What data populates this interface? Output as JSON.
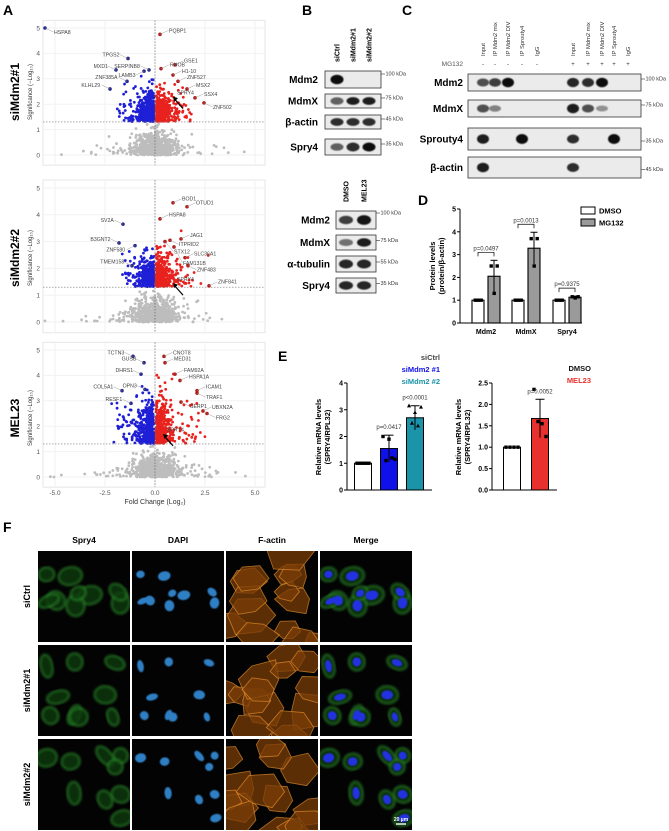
{
  "panel_labels": {
    "a": "A",
    "b": "B",
    "c": "C",
    "d": "D",
    "e": "E",
    "f": "F"
  },
  "panel_a": {
    "row_labels": [
      "siMdm2#1",
      "siMdm2#2",
      "MEL23"
    ],
    "ylabel": "Significance (−Log₁₀)",
    "xlabel": "Fold Change (Log₂)"
  },
  "panel_b": {
    "top": {
      "lanes": [
        "siCtrl",
        "siMdm2#1",
        "siMdm2#2"
      ],
      "rows": [
        {
          "label": "Mdm2",
          "kda": "100 kDa",
          "bands": [
            1,
            0,
            0
          ]
        },
        {
          "label": "MdmX",
          "kda": "75 kDa",
          "bands": [
            0.5,
            0.9,
            0.9
          ]
        },
        {
          "label": "β-actin",
          "kda": "45 kDa",
          "bands": [
            0.8,
            0.8,
            0.8
          ]
        },
        {
          "label": "Spry4",
          "kda": "35 kDa",
          "bands": [
            0.5,
            0.8,
            1
          ]
        }
      ]
    },
    "bottom": {
      "lanes": [
        "DMSO",
        "MEL23"
      ],
      "rows": [
        {
          "label": "Mdm2",
          "kda": "100 kDa",
          "bands": [
            0.7,
            0.95
          ]
        },
        {
          "label": "MdmX",
          "kda": "75 kDa",
          "bands": [
            0.4,
            0.9
          ]
        },
        {
          "label": "α-tubulin",
          "kda": "55 kDa",
          "bands": [
            0.85,
            0.85
          ]
        },
        {
          "label": "Spry4",
          "kda": "35 kDa",
          "bands": [
            0.85,
            0.85
          ]
        }
      ]
    }
  },
  "panel_c": {
    "treatment_label": "MG132",
    "lanes": [
      "Input",
      "IP Mdm2 mix",
      "IP Mdm2 DIV",
      "IP Sprouty4",
      "IgG",
      "Input",
      "IP Mdm2 mix",
      "IP Mdm2 DIV",
      "IP Sprouty4",
      "IgG"
    ],
    "treatment": [
      "-",
      "-",
      "-",
      "-",
      "-",
      "+",
      "+",
      "+",
      "+",
      "+"
    ],
    "rows": [
      {
        "label": "Mdm2",
        "kda": "100 kDa",
        "bands": [
          0.6,
          0.7,
          1,
          0,
          0,
          0.85,
          0.8,
          1,
          0,
          0
        ]
      },
      {
        "label": "MdmX",
        "kda": "75 kDa",
        "bands": [
          0.6,
          0.3,
          0,
          0,
          0,
          0.9,
          0.6,
          0.2,
          0,
          0
        ]
      },
      {
        "label": "Sprouty4",
        "kda": "35 kDa",
        "bands": [
          0.9,
          0,
          0,
          1,
          0,
          0.8,
          0,
          0,
          1,
          0
        ]
      },
      {
        "label": "β-actin",
        "kda": "45 kDa",
        "bands": [
          0.9,
          0,
          0,
          0,
          0,
          0.8,
          0,
          0,
          0,
          0
        ]
      }
    ]
  },
  "panel_f": {
    "columns": [
      "Spry4",
      "DAPI",
      "F-actin",
      "Merge"
    ],
    "rows": [
      "siCtrl",
      "siMdm2#1",
      "siMdm2#2"
    ],
    "scale_bar": "20 µm"
  },
  "chart_data": [
    {
      "type": "scatter",
      "panel": "A",
      "row": "siMdm2#1",
      "xlabel": "",
      "ylabel": "Significance (−Log₁₀)",
      "xlim": [
        -5.6,
        5.5
      ],
      "ylim": [
        0,
        5.2
      ],
      "y_ticks": [
        0,
        1,
        2,
        3,
        4,
        5
      ],
      "x_ticks": [],
      "threshold_y": 1.3,
      "threshold_x": 0,
      "colors": {
        "down": "#1f1fd6",
        "up": "#e8221e",
        "ns": "#bdbdbd"
      },
      "labeled_points": [
        {
          "gene": "HSPA8",
          "x": -5.5,
          "y": 5.0
        },
        {
          "gene": "TPGS2",
          "x": -1.35,
          "y": 3.8
        },
        {
          "gene": "MXD1",
          "x": -1.95,
          "y": 3.35
        },
        {
          "gene": "LAMB3",
          "x": -0.55,
          "y": 3.3
        },
        {
          "gene": "SERPINB8",
          "x": -0.3,
          "y": 3.35
        },
        {
          "gene": "ZNF385A",
          "x": -1.4,
          "y": 2.9
        },
        {
          "gene": "KLHL29",
          "x": -2.25,
          "y": 2.6
        },
        {
          "gene": "PQBP1",
          "x": 0.25,
          "y": 4.75
        },
        {
          "gene": "RHOB",
          "x": 0.3,
          "y": 3.4
        },
        {
          "gene": "GSE1",
          "x": 1.0,
          "y": 3.55
        },
        {
          "gene": "H1-10",
          "x": 0.9,
          "y": 3.15
        },
        {
          "gene": "ZNF527",
          "x": 1.15,
          "y": 2.9
        },
        {
          "gene": "MSX2",
          "x": 1.6,
          "y": 2.6
        },
        {
          "gene": "SSX4",
          "x": 2.0,
          "y": 2.25
        },
        {
          "gene": "ZNF502",
          "x": 2.45,
          "y": 2.05
        },
        {
          "gene": "SPRY4",
          "x": 0.9,
          "y": 2.3,
          "arrow": true
        }
      ]
    },
    {
      "type": "scatter",
      "panel": "A",
      "row": "siMdm2#2",
      "xlabel": "",
      "ylabel": "Significance (−Log₁₀)",
      "xlim": [
        -5.6,
        5.5
      ],
      "ylim": [
        0,
        5.2
      ],
      "y_ticks": [
        0,
        1,
        2,
        3,
        4,
        5
      ],
      "x_ticks": [],
      "threshold_y": 1.3,
      "threshold_x": 0,
      "colors": {
        "down": "#1f1fd6",
        "up": "#e8221e",
        "ns": "#bdbdbd"
      },
      "labeled_points": [
        {
          "gene": "SV2A",
          "x": -1.6,
          "y": 3.65
        },
        {
          "gene": "B3GNT2",
          "x": -1.8,
          "y": 2.95
        },
        {
          "gene": "ZNF580",
          "x": -1.0,
          "y": 2.85
        },
        {
          "gene": "TMEM158",
          "x": -1.15,
          "y": 2.1
        },
        {
          "gene": "BOD1",
          "x": 0.9,
          "y": 4.45
        },
        {
          "gene": "OTUD1",
          "x": 1.6,
          "y": 4.3
        },
        {
          "gene": "HSPA8",
          "x": 0.25,
          "y": 3.85
        },
        {
          "gene": "STX12",
          "x": 0.5,
          "y": 3.0
        },
        {
          "gene": "ITPRID2",
          "x": 0.75,
          "y": 3.05
        },
        {
          "gene": "JAG1",
          "x": 1.3,
          "y": 3.1
        },
        {
          "gene": "FAM131B",
          "x": 0.95,
          "y": 2.8
        },
        {
          "gene": "SLC36A1",
          "x": 1.5,
          "y": 2.4
        },
        {
          "gene": "ZNF483",
          "x": 1.65,
          "y": 2.1
        },
        {
          "gene": "ZNF841",
          "x": 2.7,
          "y": 1.35
        },
        {
          "gene": "SPRY4",
          "x": 0.9,
          "y": 1.45,
          "arrow": true
        }
      ]
    },
    {
      "type": "scatter",
      "panel": "A",
      "row": "MEL23",
      "xlabel": "Fold Change (Log₂)",
      "ylabel": "Significance (−Log₁₀)",
      "xlim": [
        -5.6,
        5.5
      ],
      "ylim": [
        0,
        5.2
      ],
      "y_ticks": [
        0,
        1,
        2,
        3,
        4,
        5
      ],
      "x_ticks": [
        -5.0,
        -2.5,
        0.0,
        2.5,
        5.0
      ],
      "threshold_y": 1.3,
      "threshold_x": 0,
      "colors": {
        "down": "#1f1fd6",
        "up": "#e8221e",
        "ns": "#bdbdbd"
      },
      "labeled_points": [
        {
          "gene": "TCTN3",
          "x": -1.1,
          "y": 4.75
        },
        {
          "gene": "GUSB",
          "x": -0.55,
          "y": 4.5
        },
        {
          "gene": "DHRS1",
          "x": -0.7,
          "y": 4.05
        },
        {
          "gene": "COL5A1",
          "x": -1.65,
          "y": 3.4
        },
        {
          "gene": "OPN3",
          "x": -0.5,
          "y": 3.45
        },
        {
          "gene": "RESF1",
          "x": -1.2,
          "y": 2.9
        },
        {
          "gene": "CNOT8",
          "x": 0.45,
          "y": 4.75
        },
        {
          "gene": "MED31",
          "x": 0.5,
          "y": 4.5
        },
        {
          "gene": "FAM92A",
          "x": 1.0,
          "y": 4.05
        },
        {
          "gene": "HSPA1A",
          "x": 1.25,
          "y": 3.8
        },
        {
          "gene": "ICAM1",
          "x": 2.1,
          "y": 3.4
        },
        {
          "gene": "TRAF1",
          "x": 2.1,
          "y": 3.3
        },
        {
          "gene": "SERP1",
          "x": 1.3,
          "y": 2.95
        },
        {
          "gene": "UBXN2A",
          "x": 2.4,
          "y": 2.6
        },
        {
          "gene": "FRG2",
          "x": 2.6,
          "y": 2.5
        },
        {
          "gene": "SPRY4",
          "x": 0.4,
          "y": 1.7,
          "arrow": true
        }
      ]
    },
    {
      "type": "bar",
      "panel": "D",
      "categories": [
        "Mdm2",
        "MdmX",
        "Spry4"
      ],
      "ylabel": [
        "Protein levels",
        "(protein/β-actin)"
      ],
      "ylim": [
        0,
        5
      ],
      "y_ticks": [
        0,
        1,
        2,
        3,
        4,
        5
      ],
      "legend": "top-right",
      "series": [
        {
          "name": "DMSO",
          "color": "#ffffff",
          "values": [
            1,
            1,
            1
          ],
          "sd": [
            0,
            0,
            0
          ],
          "replicates": [
            [
              1,
              1,
              1
            ],
            [
              1,
              1,
              1
            ],
            [
              1,
              1,
              1
            ]
          ]
        },
        {
          "name": "MG132",
          "color": "#9a9a9a",
          "values": [
            2.05,
            3.28,
            1.13
          ],
          "sd": [
            0.7,
            0.7,
            0.05
          ],
          "replicates": [
            [
              2.5,
              1.3,
              2.5
            ],
            [
              3.7,
              2.5,
              3.7
            ],
            [
              1.15,
              1.1,
              1.15
            ]
          ]
        }
      ],
      "pvalues": [
        "p=0.0497",
        "p=0.0013",
        "p=0.9375"
      ]
    },
    {
      "type": "bar",
      "panel": "E",
      "categories": [
        "siCtrl",
        "siMdm2 #1",
        "siMdm2 #2"
      ],
      "ylabel": [
        "Relative mRNA levels",
        "(SPRY4/RPL32)"
      ],
      "ylim": [
        0,
        4
      ],
      "y_ticks": [
        "0",
        "1",
        "2",
        "3",
        "4"
      ],
      "legend": "top-right",
      "colors": [
        "#ffffff",
        "#1010e8",
        "#1b93a8"
      ],
      "legend_colors": [
        "#444444",
        "#1010e8",
        "#1b93a8"
      ],
      "values": [
        1,
        1.55,
        2.7
      ],
      "sd": [
        0,
        0.5,
        0.45
      ],
      "replicates": [
        [
          1,
          1,
          1,
          1,
          1
        ],
        [
          2.0,
          1.1,
          1.9,
          1.2,
          1.15
        ],
        [
          3.15,
          2.5,
          2.9,
          2.4,
          3.1
        ]
      ],
      "pvalues": [
        "",
        "p=0.0417",
        "p<0.0001"
      ]
    },
    {
      "type": "bar",
      "panel": "E",
      "categories": [
        "DMSO",
        "MEL23"
      ],
      "ylabel": [
        "Relative mRNA levels",
        "(SPRY4/RPL32)"
      ],
      "ylim": [
        0,
        2.5
      ],
      "y_ticks": [
        "0.0",
        "0.5",
        "1.0",
        "1.5",
        "2.0",
        "2.5"
      ],
      "legend": "top-right",
      "colors": [
        "#ffffff",
        "#e8302e"
      ],
      "legend_colors": [
        "#111111",
        "#e8302e"
      ],
      "values": [
        1,
        1.67
      ],
      "sd": [
        0,
        0.45
      ],
      "replicates": [
        [
          1,
          1,
          1,
          1
        ],
        [
          2.35,
          1.6,
          1.55,
          1.25
        ]
      ],
      "pvalues": [
        "",
        "p=0.0052"
      ]
    }
  ]
}
